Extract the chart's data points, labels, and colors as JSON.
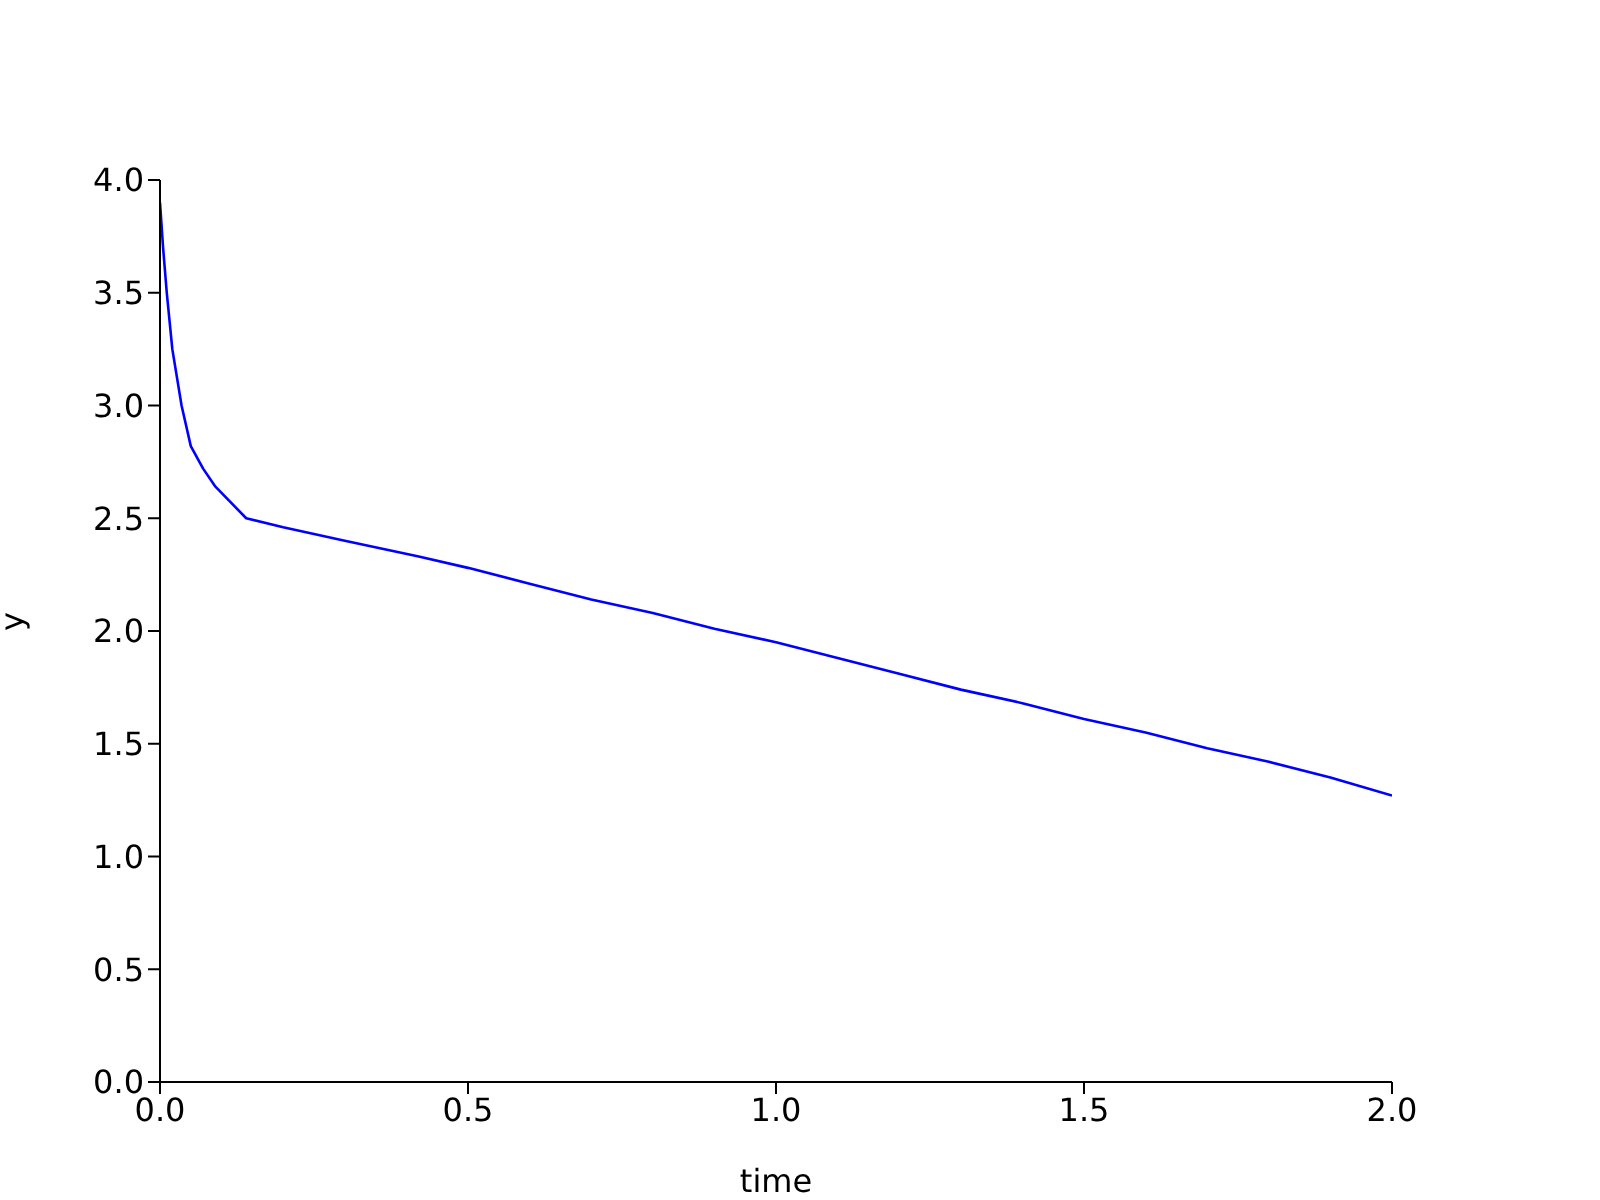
{
  "chart_data": {
    "type": "line",
    "xlabel": "time",
    "ylabel": "y",
    "color": "#0000ff",
    "x": [
      0,
      0.005,
      0.011,
      0.02,
      0.035,
      0.05,
      0.07,
      0.09,
      0.14,
      0.2,
      0.3,
      0.42,
      0.5,
      0.6,
      0.7,
      0.8,
      0.9,
      1.0,
      1.1,
      1.2,
      1.3,
      1.4,
      1.5,
      1.6,
      1.7,
      1.8,
      1.9,
      2.0
    ],
    "values": [
      3.9,
      3.7,
      3.5,
      3.25,
      3.0,
      2.82,
      2.72,
      2.64,
      2.5,
      2.46,
      2.4,
      2.33,
      2.28,
      2.21,
      2.14,
      2.08,
      2.01,
      1.95,
      1.88,
      1.81,
      1.74,
      1.68,
      1.61,
      1.55,
      1.48,
      1.42,
      1.35,
      1.27
    ],
    "xlim": [
      0,
      2
    ],
    "xticks": [
      {
        "value": 0,
        "label": "0.0"
      },
      {
        "value": 0.5,
        "label": "0.5"
      },
      {
        "value": 1,
        "label": "1.0"
      },
      {
        "value": 1.5,
        "label": "1.5"
      },
      {
        "value": 2,
        "label": "2.0"
      }
    ],
    "ylim": [
      0,
      4
    ],
    "yticks": [
      {
        "value": 0,
        "label": "0.0"
      },
      {
        "value": 0.5,
        "label": "0.5"
      },
      {
        "value": 1,
        "label": "1.0"
      },
      {
        "value": 1.5,
        "label": "1.5"
      },
      {
        "value": 2,
        "label": "2.0"
      },
      {
        "value": 2.5,
        "label": "2.5"
      },
      {
        "value": 3,
        "label": "3.0"
      },
      {
        "value": 3.5,
        "label": "3.5"
      },
      {
        "value": 4,
        "label": "4.0"
      }
    ],
    "grid": false,
    "legend": false,
    "marker": "none",
    "line_style": "solid"
  }
}
